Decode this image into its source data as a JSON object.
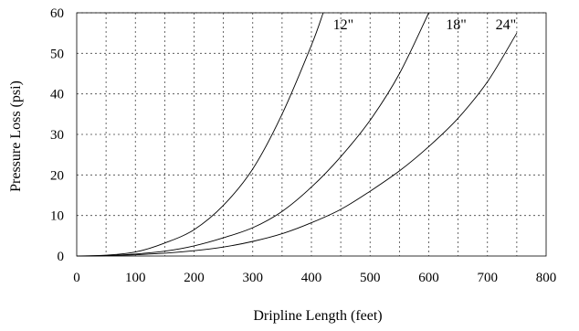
{
  "chart_data": {
    "type": "line",
    "title": "",
    "xlabel": "Dripline Length (feet)",
    "ylabel": "Pressure Loss (psi)",
    "xlim": [
      0,
      800
    ],
    "ylim": [
      0,
      60
    ],
    "xticks": [
      0,
      100,
      200,
      300,
      400,
      500,
      600,
      700,
      800
    ],
    "yticks": [
      0,
      10,
      20,
      30,
      40,
      50,
      60
    ],
    "grid": true,
    "legend": "none",
    "series": [
      {
        "name": "12\"",
        "x": [
          50,
          100,
          150,
          200,
          250,
          300,
          350,
          400,
          420
        ],
        "y": [
          0.2,
          1.0,
          3.2,
          6.5,
          12.5,
          21.5,
          35.0,
          52.0,
          60.0
        ]
      },
      {
        "name": "18\"",
        "x": [
          50,
          100,
          150,
          200,
          250,
          300,
          350,
          400,
          450,
          500,
          550,
          600
        ],
        "y": [
          0.1,
          0.5,
          1.2,
          2.5,
          4.5,
          7.0,
          11.0,
          17.0,
          24.5,
          33.5,
          45.0,
          60.0
        ]
      },
      {
        "name": "24\"",
        "x": [
          50,
          100,
          150,
          200,
          250,
          300,
          350,
          400,
          450,
          500,
          550,
          600,
          650,
          700,
          750
        ],
        "y": [
          0.1,
          0.3,
          0.7,
          1.3,
          2.2,
          3.6,
          5.5,
          8.2,
          11.5,
          16.0,
          21.0,
          27.0,
          34.0,
          43.0,
          55.0
        ]
      }
    ]
  }
}
